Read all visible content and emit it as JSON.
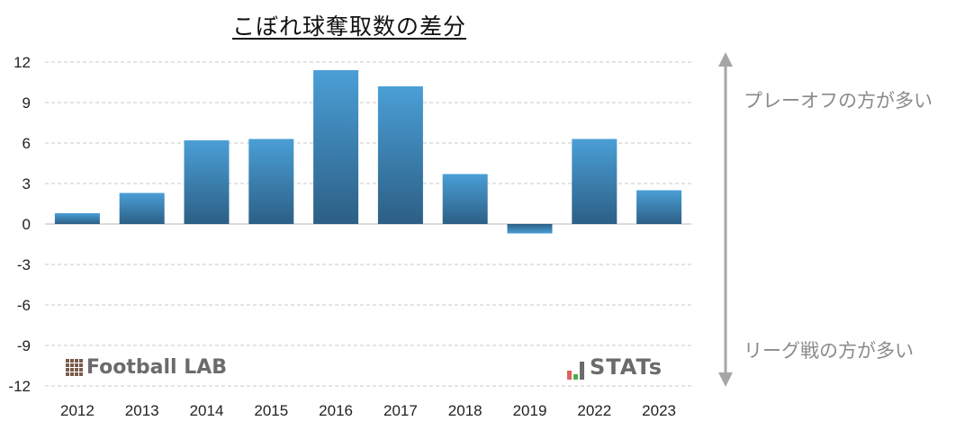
{
  "chart_data": {
    "type": "bar",
    "title": "こぼれ球奪取数の差分",
    "categories": [
      "2012",
      "2013",
      "2014",
      "2015",
      "2016",
      "2017",
      "2018",
      "2019",
      "2022",
      "2023"
    ],
    "values": [
      0.8,
      2.3,
      6.2,
      6.3,
      11.4,
      10.2,
      3.7,
      -0.7,
      6.3,
      2.5
    ],
    "ylim": [
      -12,
      12
    ],
    "yticks": [
      12,
      9,
      6,
      3,
      0,
      -3,
      -6,
      -9,
      -12
    ],
    "grid": true,
    "bar_color_top": "#4a9fd6",
    "bar_color_bottom": "#2c5f85",
    "annotation_top": "プレーオフの方が多い",
    "annotation_bottom": "リーグ戦の方が多い"
  },
  "logos": {
    "left": "Football LAB",
    "right": "STATs"
  },
  "colors": {
    "grid": "#c8c8c8",
    "axis": "#d0d0d0",
    "arrow": "#a6a6a6",
    "stats_bar_red": "#e06060",
    "stats_bar_green": "#4caf50"
  }
}
